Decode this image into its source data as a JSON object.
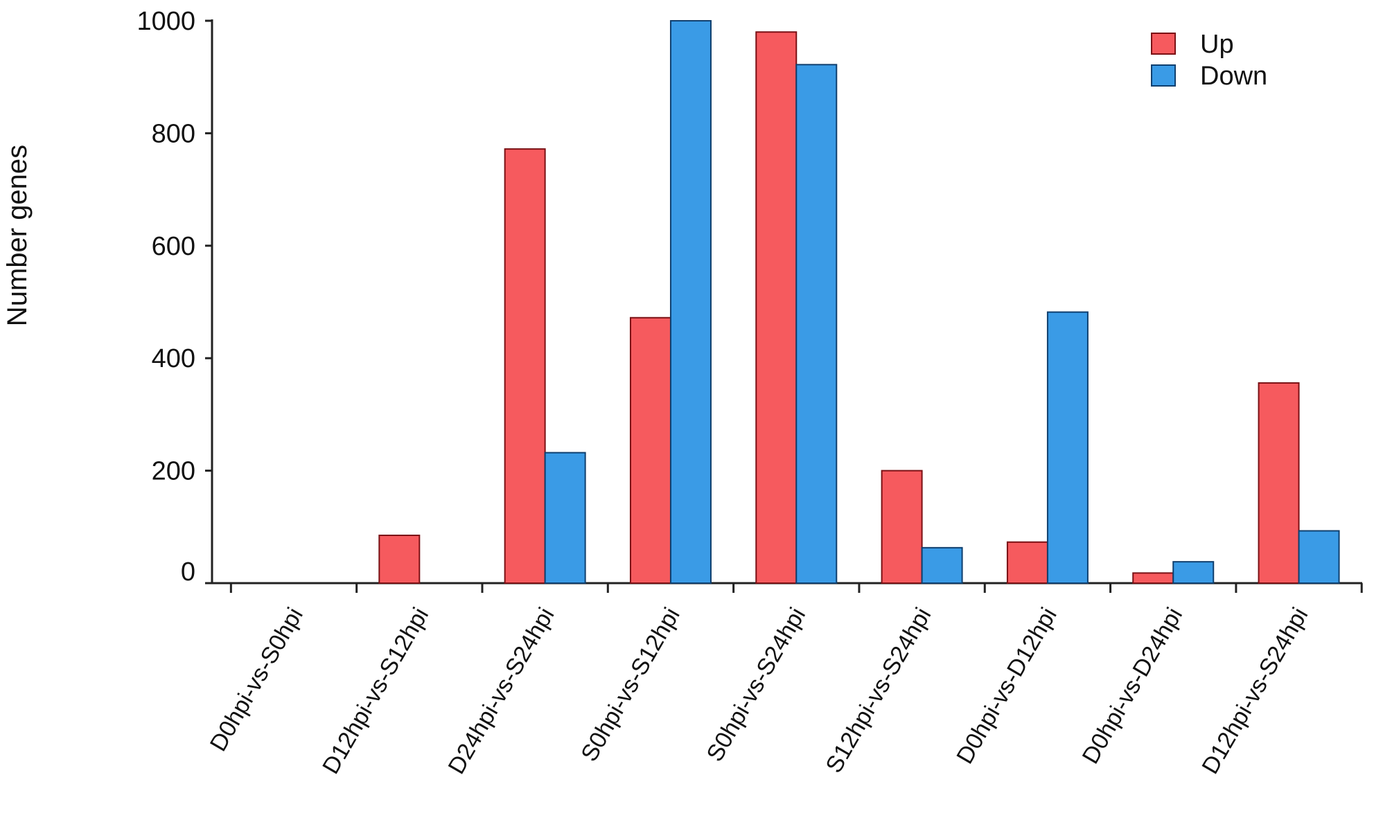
{
  "chart_data": {
    "type": "bar",
    "title": "",
    "xlabel": "",
    "ylabel": "Number genes",
    "ylim": [
      0,
      1000
    ],
    "yticks": [
      0,
      200,
      400,
      600,
      800,
      1000
    ],
    "grid": false,
    "legend_position": "top-right",
    "categories": [
      "D0hpi-vs-S0hpi",
      "D12hpi-vs-S12hpi",
      "D24hpi-vs-S24hpi",
      "S0hpi-vs-S12hpi",
      "S0hpi-vs-S24hpi",
      "S12hpi-vs-S24hpi",
      "D0hpi-vs-D12hpi",
      "D0hpi-vs-D24hpi",
      "D12hpi-vs-S24hpi"
    ],
    "series": [
      {
        "name": "Up",
        "color": "#f65a5e",
        "values": [
          0,
          85,
          772,
          472,
          980,
          200,
          73,
          18,
          356
        ]
      },
      {
        "name": "Down",
        "color": "#3a9be6",
        "values": [
          0,
          0,
          232,
          1000,
          922,
          63,
          482,
          38,
          93
        ]
      }
    ]
  }
}
